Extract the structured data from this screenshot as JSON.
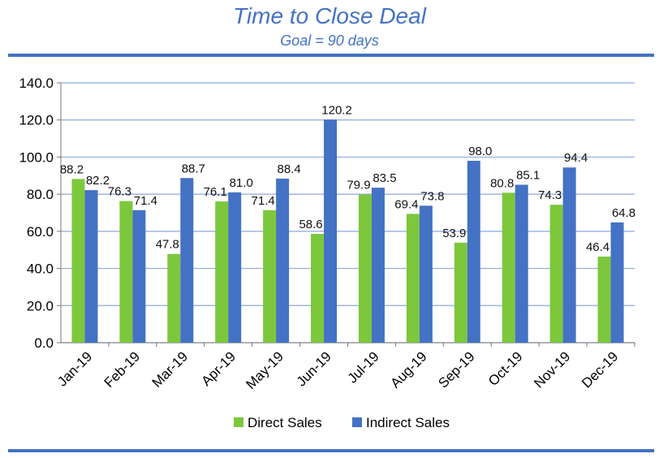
{
  "chart_data": {
    "type": "bar",
    "title": "Time to Close Deal",
    "subtitle": "Goal = 90 days",
    "categories": [
      "Jan-19",
      "Feb-19",
      "Mar-19",
      "Apr-19",
      "May-19",
      "Jun-19",
      "Jul-19",
      "Aug-19",
      "Sep-19",
      "Oct-19",
      "Nov-19",
      "Dec-19"
    ],
    "series": [
      {
        "name": "Direct Sales",
        "color": "#7DC73D",
        "values": [
          88.2,
          76.3,
          47.8,
          76.1,
          71.4,
          58.6,
          79.9,
          69.4,
          53.9,
          80.8,
          74.3,
          46.4
        ]
      },
      {
        "name": "Indirect Sales",
        "color": "#4472C4",
        "values": [
          82.2,
          71.4,
          88.7,
          81.0,
          88.4,
          120.2,
          83.5,
          73.8,
          98.0,
          85.1,
          94.4,
          64.8
        ]
      }
    ],
    "ylim": [
      0,
      140
    ],
    "yticks": [
      "0.0",
      "20.0",
      "40.0",
      "60.0",
      "80.0",
      "100.0",
      "120.0",
      "140.0"
    ],
    "grid": true,
    "legend": "bottom"
  }
}
